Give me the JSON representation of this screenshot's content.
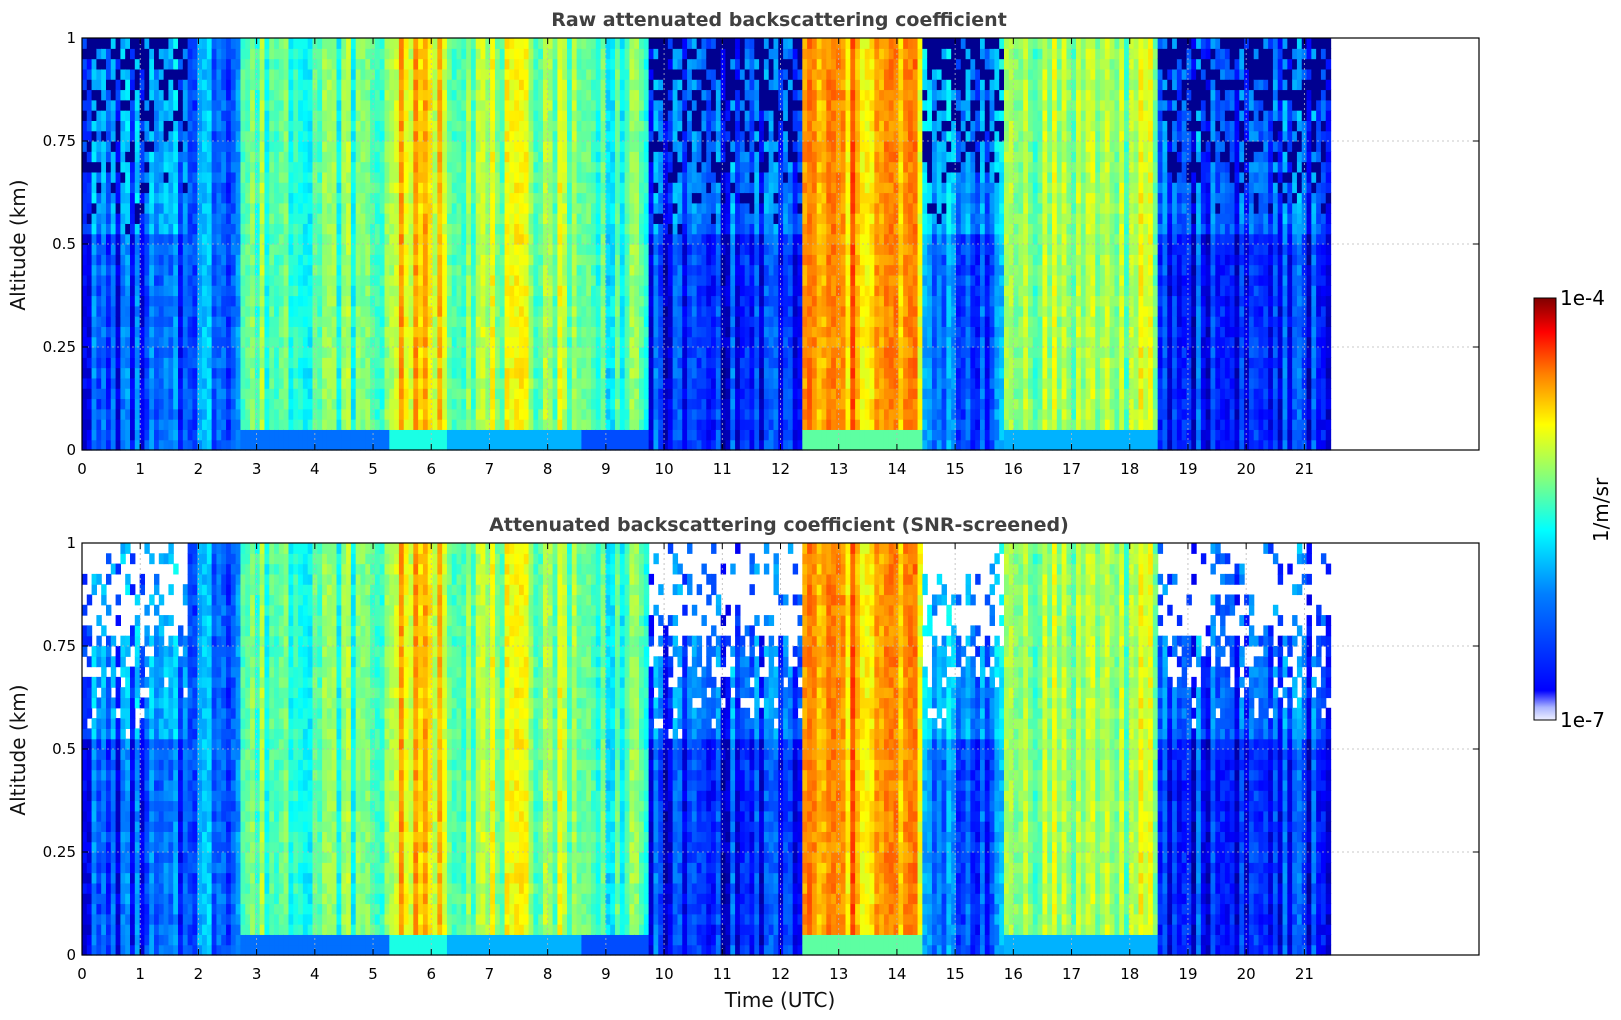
{
  "figure": {
    "xlabel": "Time (UTC)",
    "colorbar": {
      "label": "1/m/sr",
      "top_label": "1e-4",
      "bottom_label": "1e-7",
      "colormap": "jet",
      "scale": "log"
    },
    "colors": {
      "background": "#ffffff",
      "grid": "#b8b8b8",
      "title": "#404040"
    }
  },
  "chart_data": [
    {
      "type": "heatmap",
      "title": "Raw attenuated backscattering coefficient",
      "xlabel": "",
      "ylabel": "Altitude (km)",
      "xlim": [
        0,
        24
      ],
      "ylim": [
        0,
        1
      ],
      "xticks": [
        "0",
        "1",
        "2",
        "3",
        "4",
        "5",
        "6",
        "7",
        "8",
        "9",
        "10",
        "11",
        "12",
        "13",
        "14",
        "15",
        "16",
        "17",
        "18",
        "19",
        "20",
        "21"
      ],
      "yticks": [
        "0",
        "0.25",
        "0.5",
        "0.75",
        "1"
      ],
      "ytick_values": [
        0,
        0.25,
        0.5,
        0.75,
        1
      ],
      "grid": true,
      "data_end_hour": 21.45,
      "dominant_log10_by_period": [
        {
          "from": 0.0,
          "to": 1.8,
          "value": -6.6
        },
        {
          "from": 1.8,
          "to": 2.7,
          "value": -6.2
        },
        {
          "from": 2.7,
          "to": 5.2,
          "value": -5.6
        },
        {
          "from": 5.2,
          "to": 6.2,
          "value": -5.1
        },
        {
          "from": 6.2,
          "to": 8.5,
          "value": -5.4
        },
        {
          "from": 8.5,
          "to": 9.7,
          "value": -5.7
        },
        {
          "from": 9.7,
          "to": 12.3,
          "value": -6.7
        },
        {
          "from": 12.3,
          "to": 14.4,
          "value": -4.9
        },
        {
          "from": 14.4,
          "to": 15.8,
          "value": -6.5
        },
        {
          "from": 15.8,
          "to": 18.4,
          "value": -5.4
        },
        {
          "from": 18.4,
          "to": 21.45,
          "value": -6.7
        }
      ],
      "screened": false
    },
    {
      "type": "heatmap",
      "title": "Attenuated backscattering coefficient (SNR-screened)",
      "xlabel": "Time (UTC)",
      "ylabel": "Altitude (km)",
      "xlim": [
        0,
        24
      ],
      "ylim": [
        0,
        1
      ],
      "xticks": [
        "0",
        "1",
        "2",
        "3",
        "4",
        "5",
        "6",
        "7",
        "8",
        "9",
        "10",
        "11",
        "12",
        "13",
        "14",
        "15",
        "16",
        "17",
        "18",
        "19",
        "20",
        "21"
      ],
      "yticks": [
        "0",
        "0.25",
        "0.5",
        "0.75",
        "1"
      ],
      "ytick_values": [
        0,
        0.25,
        0.5,
        0.75,
        1
      ],
      "grid": true,
      "data_end_hour": 21.45,
      "dominant_log10_by_period": [
        {
          "from": 0.0,
          "to": 1.8,
          "value": -6.6
        },
        {
          "from": 1.8,
          "to": 2.7,
          "value": -6.2
        },
        {
          "from": 2.7,
          "to": 5.2,
          "value": -5.6
        },
        {
          "from": 5.2,
          "to": 6.2,
          "value": -5.1
        },
        {
          "from": 6.2,
          "to": 8.5,
          "value": -5.4
        },
        {
          "from": 8.5,
          "to": 9.7,
          "value": -5.7
        },
        {
          "from": 9.7,
          "to": 12.3,
          "value": -6.7
        },
        {
          "from": 12.3,
          "to": 14.4,
          "value": -4.9
        },
        {
          "from": 14.4,
          "to": 15.8,
          "value": -6.5
        },
        {
          "from": 15.8,
          "to": 18.4,
          "value": -5.4
        },
        {
          "from": 18.4,
          "to": 21.45,
          "value": -6.7
        }
      ],
      "screened": true
    }
  ]
}
